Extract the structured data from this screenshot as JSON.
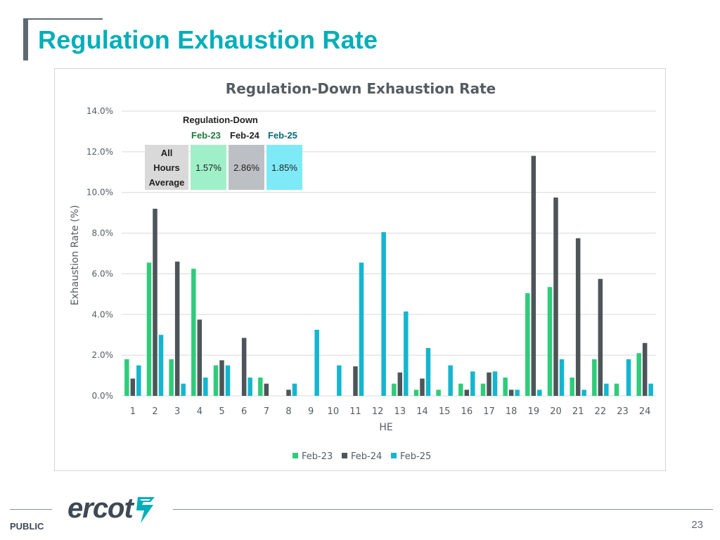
{
  "slide": {
    "title": "Regulation Exhaustion Rate",
    "page_number": "23",
    "classification": "PUBLIC",
    "logo_text": "ercot"
  },
  "summary_table": {
    "title": "Regulation-Down",
    "row_label": [
      "All",
      "Hours",
      "Average"
    ],
    "columns": [
      {
        "label": "Feb-23",
        "value": "1.57%",
        "header_color": "#1e7a3c",
        "cell_color": "#9ff0c8"
      },
      {
        "label": "Feb-24",
        "value": "2.86%",
        "header_color": "#222222",
        "cell_color": "#bcc0c4"
      },
      {
        "label": "Feb-25",
        "value": "1.85%",
        "header_color": "#0a6b76",
        "cell_color": "#7eeaf7"
      }
    ]
  },
  "chart_data": {
    "type": "bar",
    "title": "Regulation-Down Exhaustion Rate",
    "xlabel": "HE",
    "ylabel": "Exhaustion Rate (%)",
    "ylim": [
      0,
      14
    ],
    "yticks": [
      "0.0%",
      "2.0%",
      "4.0%",
      "6.0%",
      "8.0%",
      "10.0%",
      "12.0%",
      "14.0%"
    ],
    "grid": true,
    "legend_position": "bottom",
    "categories": [
      "1",
      "2",
      "3",
      "4",
      "5",
      "6",
      "7",
      "8",
      "9",
      "10",
      "11",
      "12",
      "13",
      "14",
      "15",
      "16",
      "17",
      "18",
      "19",
      "20",
      "21",
      "22",
      "23",
      "24"
    ],
    "series": [
      {
        "name": "Feb-23",
        "color": "#2ecc7a",
        "values": [
          1.8,
          6.55,
          1.8,
          6.25,
          1.5,
          0.0,
          0.9,
          0.0,
          0.0,
          0.0,
          0.0,
          0.0,
          0.6,
          0.3,
          0.3,
          0.6,
          0.6,
          0.9,
          5.05,
          5.35,
          0.9,
          1.8,
          0.6,
          2.1
        ]
      },
      {
        "name": "Feb-24",
        "color": "#4d5559",
        "values": [
          0.85,
          9.2,
          6.6,
          3.75,
          1.75,
          2.85,
          0.6,
          0.3,
          0.0,
          0.0,
          1.45,
          0.0,
          1.15,
          0.85,
          0.0,
          0.3,
          1.15,
          0.3,
          11.8,
          9.75,
          7.75,
          5.75,
          0.0,
          2.6
        ]
      },
      {
        "name": "Feb-25",
        "color": "#14b6cf",
        "values": [
          1.5,
          3.0,
          0.6,
          0.9,
          1.5,
          0.9,
          0.0,
          0.6,
          3.25,
          1.5,
          6.55,
          8.05,
          4.15,
          2.35,
          1.5,
          1.2,
          1.2,
          0.3,
          0.3,
          1.8,
          0.3,
          0.6,
          1.8,
          0.6
        ]
      }
    ]
  }
}
